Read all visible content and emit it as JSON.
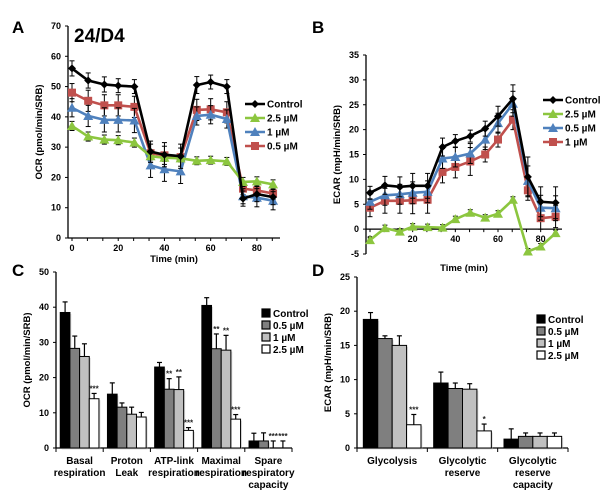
{
  "chart_data": [
    {
      "panel": "A",
      "type": "line",
      "title": "24/D4",
      "xlabel": "Time (min)",
      "ylabel": "OCR (pmol/min/SRB)",
      "xlim": [
        0,
        90
      ],
      "ylim": [
        0,
        70
      ],
      "xticks": [
        0,
        20,
        40,
        60,
        80
      ],
      "yticks": [
        0,
        10,
        20,
        30,
        40,
        50,
        60,
        70
      ],
      "legend_position": "right",
      "x": [
        0,
        7,
        14,
        20,
        27,
        34,
        40,
        47,
        54,
        60,
        67,
        74,
        80,
        87
      ],
      "series": [
        {
          "name": "Control",
          "color": "#000000",
          "marker": "diamond",
          "values": [
            56,
            52,
            50.7,
            50.3,
            50,
            28.5,
            27.5,
            27,
            50.5,
            51.5,
            50,
            13,
            14.5,
            13.5
          ],
          "errors": [
            2.5,
            2.5,
            2.5,
            2.3,
            2.3,
            3.5,
            4,
            4,
            2.8,
            2.3,
            2.3,
            2.5,
            2.5,
            2.5
          ]
        },
        {
          "name": "2.5 µM",
          "color": "#8cc63f",
          "marker": "triangle",
          "values": [
            37,
            33.5,
            32.5,
            32.3,
            31.5,
            27,
            26.5,
            26.3,
            25.5,
            25.7,
            25.3,
            18.5,
            18.7,
            17.7
          ],
          "errors": [
            1.5,
            1.5,
            1.5,
            1.5,
            1.5,
            1.2,
            1.2,
            1.2,
            1.3,
            1.3,
            1.3,
            1.5,
            1.5,
            1.5
          ]
        },
        {
          "name": "1 µM",
          "color": "#4f81bd",
          "marker": "triangle",
          "values": [
            43,
            40.3,
            39,
            39,
            38.8,
            24,
            22.7,
            22,
            40.3,
            40.7,
            39.3,
            13.8,
            13.3,
            12.3
          ],
          "errors": [
            3,
            3.5,
            4,
            4,
            4,
            4,
            4,
            4,
            3,
            3,
            3,
            2.5,
            3,
            3
          ]
        },
        {
          "name": "0.5 µM",
          "color": "#c0504d",
          "marker": "square",
          "values": [
            48,
            45.3,
            43.8,
            43.8,
            43.3,
            28,
            27.3,
            26.7,
            42.3,
            42.5,
            41.5,
            16.3,
            15.7,
            14.7
          ],
          "errors": [
            3,
            3.5,
            3.5,
            3.5,
            3.5,
            3,
            3,
            3,
            3.5,
            3.5,
            3.5,
            2,
            2,
            2
          ]
        }
      ]
    },
    {
      "panel": "B",
      "type": "line",
      "title": "",
      "xlabel": "Time (min)",
      "ylabel": "ECAR (mpH/min/SRB)",
      "xlim": [
        0,
        90
      ],
      "ylim": [
        -5,
        35
      ],
      "xticks": [
        0,
        20,
        40,
        60,
        80
      ],
      "yticks": [
        -5,
        0,
        5,
        10,
        15,
        20,
        25,
        30,
        35
      ],
      "legend_position": "right",
      "x": [
        0,
        7,
        14,
        20,
        27,
        34,
        40,
        47,
        54,
        60,
        67,
        74,
        80,
        87
      ],
      "series": [
        {
          "name": "Control",
          "color": "#000000",
          "marker": "diamond",
          "values": [
            7.3,
            8.8,
            8.5,
            8.7,
            8.7,
            16.5,
            17.7,
            18.7,
            20.2,
            22.7,
            26.2,
            10.5,
            5.5,
            5.3
          ],
          "errors": [
            1.3,
            1.8,
            2,
            2.5,
            2.5,
            1.8,
            1.3,
            1.2,
            1.5,
            2,
            2.8,
            4,
            3,
            3.2
          ]
        },
        {
          "name": "2.5 µM",
          "color": "#8cc63f",
          "marker": "triangle",
          "values": [
            -2.2,
            0.2,
            -0.5,
            0.5,
            0.4,
            0.3,
            2,
            3.3,
            2.3,
            3.1,
            5.9,
            -4.5,
            -3.5,
            -0.8
          ],
          "errors": [
            0.6,
            0.6,
            0.6,
            0.6,
            0.6,
            0.6,
            0.6,
            0.6,
            0.6,
            0.6,
            0.6,
            0.6,
            0.6,
            0.6
          ]
        },
        {
          "name": "0.5 µM",
          "color": "#4f81bd",
          "marker": "triangle",
          "values": [
            5.5,
            6.8,
            7,
            7.3,
            7.5,
            14.2,
            14.5,
            15.2,
            18,
            21.3,
            25.2,
            9.7,
            4.3,
            4.2
          ],
          "errors": [
            1.5,
            2,
            2,
            2.2,
            2.2,
            2,
            2,
            2,
            2,
            2,
            2.5,
            3,
            2.5,
            2.5
          ]
        },
        {
          "name": "1 µM",
          "color": "#c0504d",
          "marker": "square",
          "values": [
            4.3,
            5.7,
            5.7,
            5.8,
            5.9,
            11.5,
            12.5,
            13.6,
            15,
            18,
            22,
            7.8,
            2.2,
            2.5
          ],
          "errors": [
            1.8,
            2.5,
            2.5,
            2.7,
            2.7,
            2.2,
            2.2,
            2.8,
            1.5,
            1.5,
            2,
            2,
            2.2,
            2.2
          ]
        }
      ]
    },
    {
      "panel": "C",
      "type": "bar",
      "title": "",
      "xlabel": "",
      "ylabel": "OCR (pmol/min/SRB)",
      "ylim": [
        0,
        50
      ],
      "yticks": [
        0,
        10,
        20,
        30,
        40,
        50
      ],
      "legend_position": "right",
      "categories": [
        [
          "Basal",
          "respiration"
        ],
        [
          "Proton",
          "Leak"
        ],
        [
          "ATP-link",
          "respiration"
        ],
        [
          "Maximal",
          "respiration"
        ],
        [
          "Spare",
          "respiratory",
          "capacity"
        ]
      ],
      "series": [
        {
          "name": "Control",
          "color": "#000000",
          "values": [
            38.5,
            15.3,
            23,
            40.5,
            2
          ],
          "errors": [
            3,
            3.2,
            1.3,
            2.2,
            2.2
          ],
          "stars": [
            "",
            "",
            "",
            "",
            ""
          ]
        },
        {
          "name": "0.5 µM",
          "color": "#7f7f7f",
          "values": [
            28.3,
            11.6,
            16.7,
            28.2,
            2
          ],
          "errors": [
            3.5,
            1.2,
            3,
            4.2,
            2.3
          ],
          "stars": [
            "",
            "",
            "**",
            "**",
            ""
          ]
        },
        {
          "name": "1 µM",
          "color": "#c0c0c0",
          "values": [
            26,
            9.6,
            16.6,
            27.8,
            0
          ],
          "errors": [
            3.6,
            2,
            3.6,
            4.2,
            2
          ],
          "stars": [
            "",
            "",
            "**",
            "**",
            "***"
          ]
        },
        {
          "name": "2.5 µM",
          "color": "#ffffff",
          "values": [
            14,
            8.8,
            5,
            8.2,
            0
          ],
          "errors": [
            1.5,
            1.3,
            0.8,
            1.3,
            2
          ],
          "stars": [
            "***",
            "",
            "***",
            "***",
            "***"
          ]
        }
      ]
    },
    {
      "panel": "D",
      "type": "bar",
      "title": "",
      "xlabel": "",
      "ylabel": "ECAR (mpH/min/SRB)",
      "ylim": [
        0,
        25
      ],
      "yticks": [
        0,
        5,
        10,
        15,
        20,
        25
      ],
      "legend_position": "right",
      "categories": [
        [
          "Glycolysis"
        ],
        [
          "Glycolytic",
          "reserve"
        ],
        [
          "Glycolytic",
          "reserve",
          "capacity"
        ]
      ],
      "series": [
        {
          "name": "Control",
          "color": "#000000",
          "values": [
            18.8,
            9.5,
            1.3
          ],
          "errors": [
            1,
            1.6,
            1.5
          ],
          "stars": [
            "",
            "",
            ""
          ]
        },
        {
          "name": "0.5 µM",
          "color": "#7f7f7f",
          "values": [
            16,
            8.7,
            1.7
          ],
          "errors": [
            0.4,
            0.8,
            0.5
          ],
          "stars": [
            "",
            "",
            ""
          ]
        },
        {
          "name": "1 µM",
          "color": "#c0c0c0",
          "values": [
            15,
            8.6,
            1.7
          ],
          "errors": [
            1.4,
            0.8,
            0.5
          ],
          "stars": [
            "",
            "",
            ""
          ]
        },
        {
          "name": "2.5 µM",
          "color": "#ffffff",
          "values": [
            3.4,
            2.5,
            1.7
          ],
          "errors": [
            1.5,
            1,
            0.5
          ],
          "stars": [
            "***",
            "*",
            ""
          ]
        }
      ]
    }
  ],
  "labels": {
    "panel_a": "A",
    "panel_b": "B",
    "panel_c": "C",
    "panel_d": "D"
  }
}
